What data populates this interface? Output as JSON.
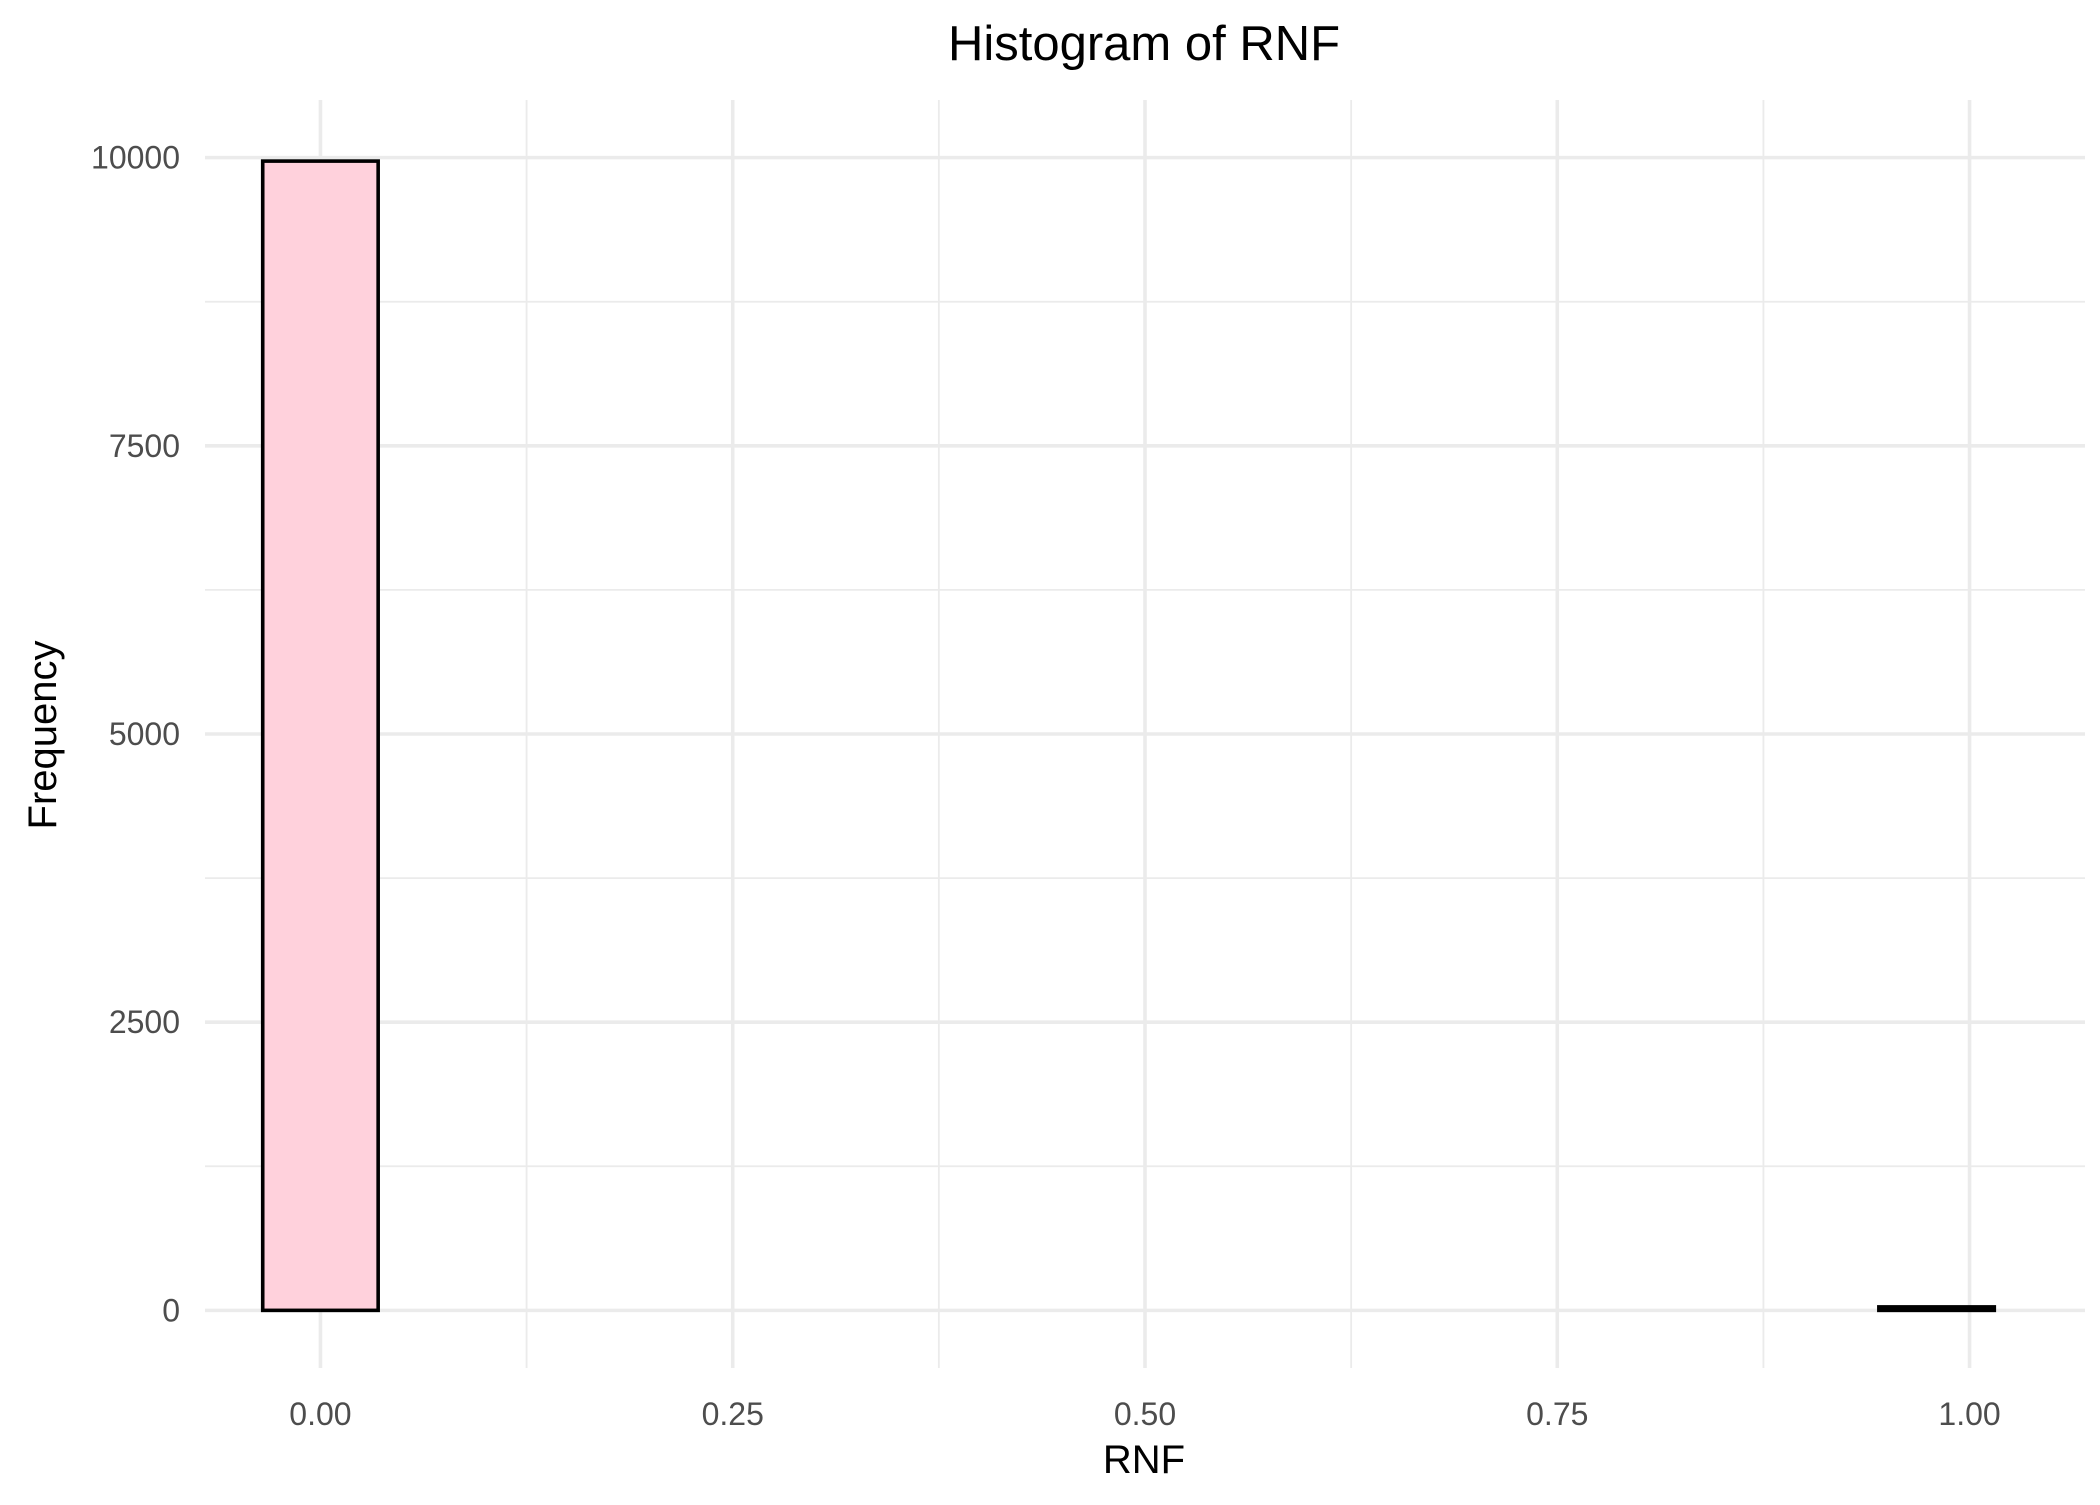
{
  "chart_data": {
    "type": "bar",
    "title": "Histogram of RNF",
    "xlabel": "RNF",
    "ylabel": "Frequency",
    "xlim": [
      -0.07,
      1.07
    ],
    "ylim": [
      -500,
      10500
    ],
    "x_ticks": [
      0.0,
      0.25,
      0.5,
      0.75,
      1.0
    ],
    "x_tick_labels": [
      "0.00",
      "0.25",
      "0.50",
      "0.75",
      "1.00"
    ],
    "y_ticks": [
      0,
      2500,
      5000,
      7500,
      10000
    ],
    "y_tick_labels": [
      "0",
      "2500",
      "5000",
      "7500",
      "10000"
    ],
    "bin_width": 0.07,
    "bins": [
      {
        "center": 0.0,
        "count": 9970
      },
      {
        "center": 0.07,
        "count": 0
      },
      {
        "center": 0.14,
        "count": 0
      },
      {
        "center": 0.21,
        "count": 0
      },
      {
        "center": 0.28,
        "count": 0
      },
      {
        "center": 0.35,
        "count": 0
      },
      {
        "center": 0.42,
        "count": 0
      },
      {
        "center": 0.49,
        "count": 0
      },
      {
        "center": 0.56,
        "count": 0
      },
      {
        "center": 0.63,
        "count": 0
      },
      {
        "center": 0.7,
        "count": 0
      },
      {
        "center": 0.77,
        "count": 0
      },
      {
        "center": 0.84,
        "count": 0
      },
      {
        "center": 0.91,
        "count": 0
      },
      {
        "center": 0.98,
        "count": 30
      }
    ],
    "grid": true,
    "legend": "none",
    "colors": {
      "bar_fill": "#ffd1dc",
      "bar_outline": "#000000",
      "grid": "#ebebeb",
      "background": "#ffffff"
    }
  }
}
